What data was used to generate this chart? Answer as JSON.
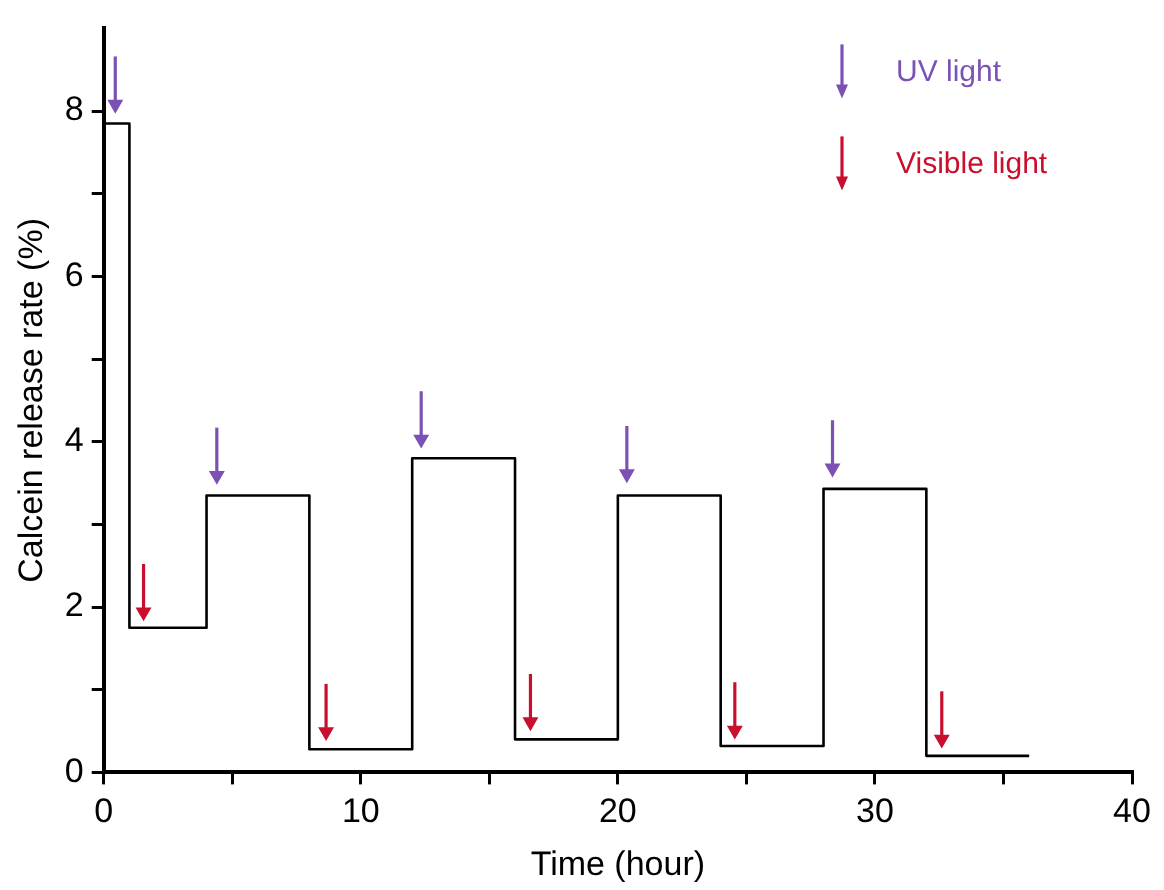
{
  "chart_data": {
    "type": "step",
    "xlabel": "Time (hour)",
    "ylabel": "Calcein release rate (%)",
    "xlim": [
      0,
      40
    ],
    "xticks": [
      0,
      {
        "value": 5,
        "label": null
      },
      10,
      {
        "value": 15,
        "label": null
      },
      20,
      {
        "value": 25,
        "label": null
      },
      30,
      {
        "value": 35,
        "label": null
      },
      40
    ],
    "ylim": [
      0,
      9
    ],
    "yticks": [
      0,
      {
        "value": 1,
        "label": null
      },
      2,
      {
        "value": 3,
        "label": null
      },
      4,
      {
        "value": 5,
        "label": null
      },
      6,
      {
        "value": 7,
        "label": null
      },
      8
    ],
    "grid": false,
    "legend": "top right",
    "series": [
      {
        "type": "step",
        "color": "#000000",
        "x": [
          0,
          1,
          4,
          8,
          12,
          16,
          20,
          24,
          28,
          32,
          36
        ],
        "values": [
          7.85,
          1.75,
          3.35,
          0.28,
          3.8,
          0.4,
          3.35,
          0.32,
          3.43,
          0.2,
          0.2
        ]
      },
      {
        "type": "scatter",
        "name": "UV light",
        "color": "#7b52b4",
        "marker": "triangle",
        "x": [
          0.45,
          4.4,
          12.35,
          20.35,
          28.35
        ],
        "values": [
          8.08,
          3.59,
          4.03,
          3.61,
          3.68
        ]
      },
      {
        "type": "scatter",
        "name": "Visible light",
        "color": "#c8102e",
        "marker": "triangle",
        "x": [
          1.55,
          8.65,
          16.6,
          24.55,
          32.6
        ],
        "values": [
          1.94,
          0.49,
          0.61,
          0.51,
          0.4
        ]
      }
    ]
  }
}
